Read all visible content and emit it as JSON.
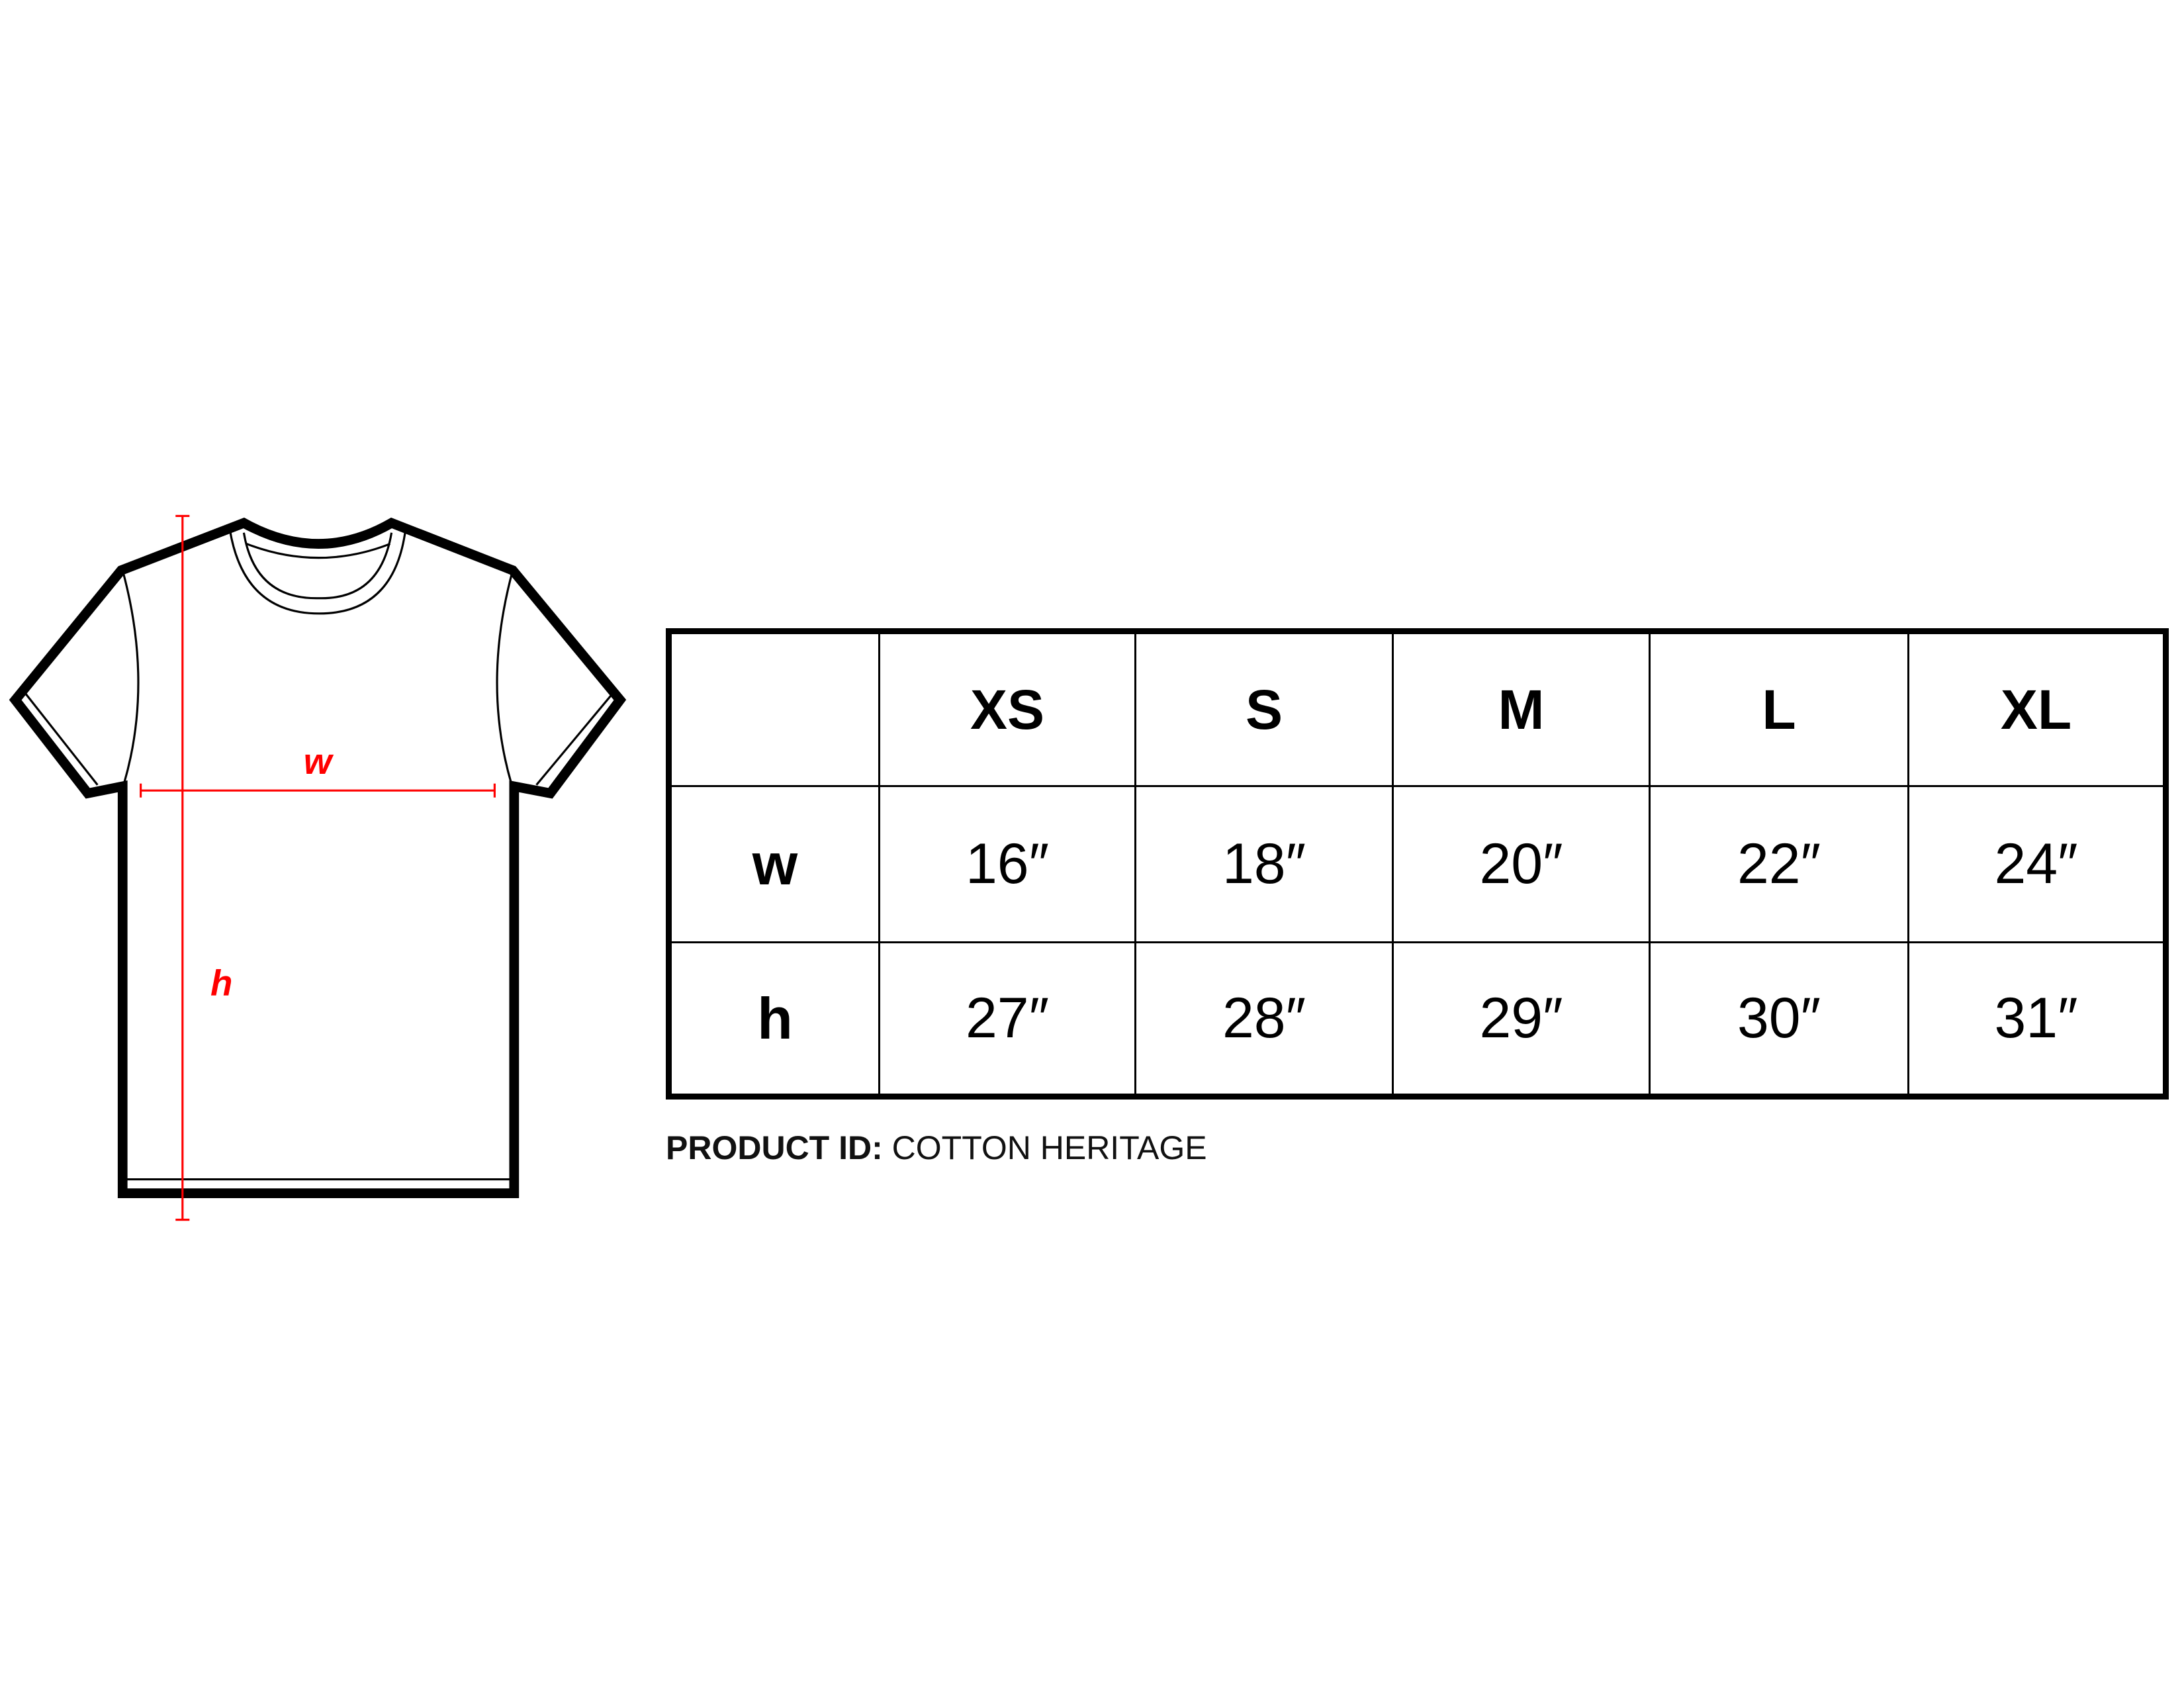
{
  "diagram": {
    "width_label": "w",
    "height_label": "h",
    "measure_color": "#ff0000",
    "outline_color": "#000000"
  },
  "table": {
    "sizes": [
      "XS",
      "S",
      "M",
      "L",
      "XL"
    ],
    "rows": [
      {
        "label": "w",
        "values": [
          "16″",
          "18″",
          "20″",
          "22″",
          "24″"
        ]
      },
      {
        "label": "h",
        "values": [
          "27″",
          "28″",
          "29″",
          "30″",
          "31″"
        ]
      }
    ]
  },
  "product": {
    "label": "PRODUCT ID:",
    "value": "COTTON HERITAGE"
  }
}
